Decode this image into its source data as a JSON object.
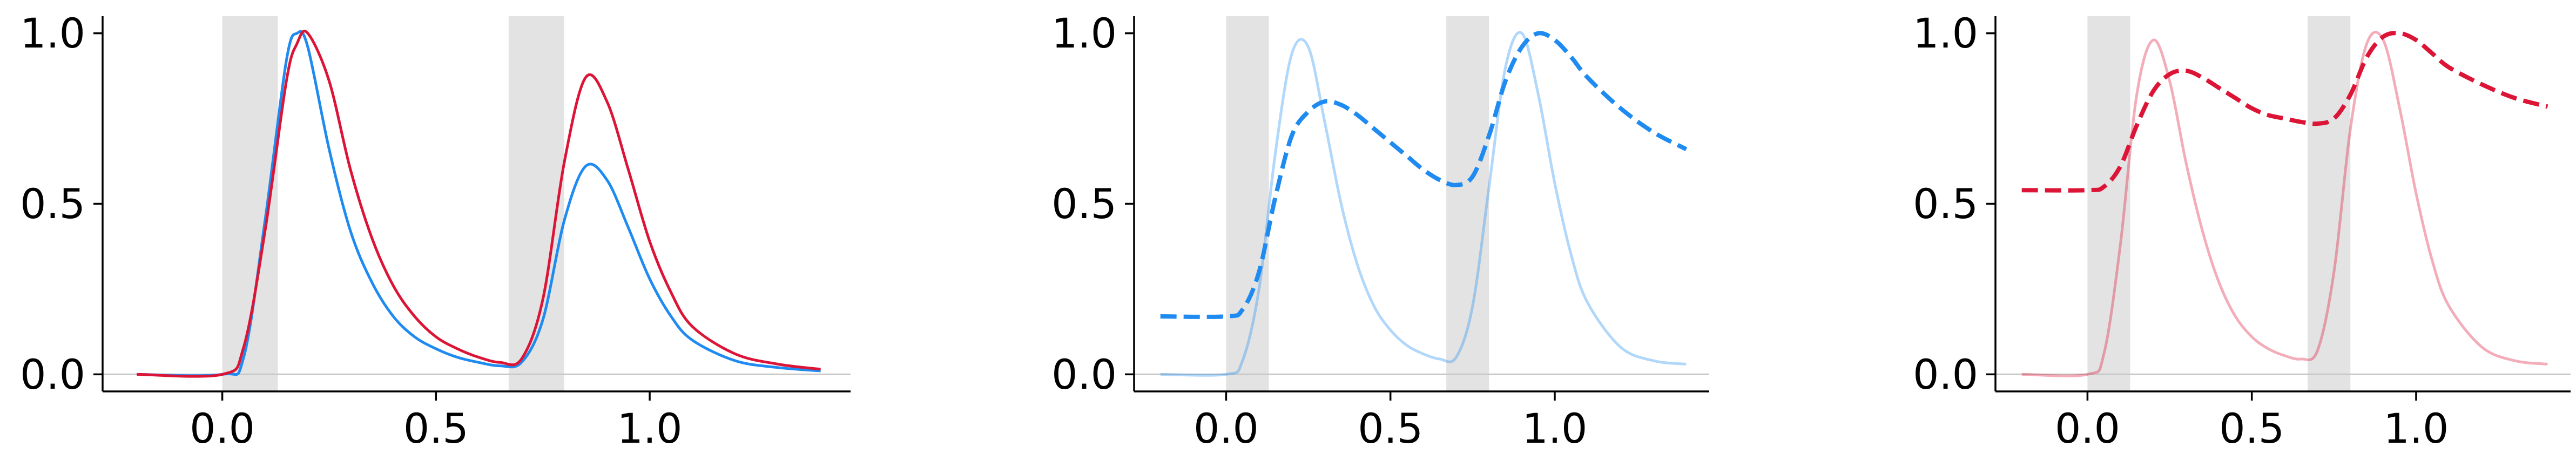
{
  "chart_data": [
    {
      "type": "line",
      "title": "",
      "xlabel": "",
      "ylabel": "",
      "xlim": [
        -0.28,
        1.47
      ],
      "ylim": [
        -0.05,
        1.05
      ],
      "xticks": [
        0.0,
        0.5,
        1.0
      ],
      "xtick_labels": [
        "0.0",
        "0.5",
        "1.0"
      ],
      "yticks": [
        0.0,
        0.5,
        1.0
      ],
      "ytick_labels": [
        "0.0",
        "0.5",
        "1.0"
      ],
      "grid": false,
      "legend": "none",
      "shaded_intervals": [
        [
          0.0,
          0.13
        ],
        [
          0.67,
          0.8
        ]
      ],
      "baseline": 0.0,
      "x": [
        -0.2,
        0.0,
        0.05,
        0.1,
        0.15,
        0.175,
        0.2,
        0.25,
        0.3,
        0.35,
        0.4,
        0.45,
        0.5,
        0.55,
        0.6,
        0.65,
        0.7,
        0.75,
        0.8,
        0.85,
        0.9,
        0.95,
        1.0,
        1.05,
        1.1,
        1.2,
        1.3,
        1.4
      ],
      "series": [
        {
          "color": "#1f8bf0",
          "style": "solid",
          "opacity": 1,
          "values": [
            0.0,
            0.0,
            0.05,
            0.45,
            0.92,
            1.0,
            0.96,
            0.66,
            0.42,
            0.27,
            0.17,
            0.11,
            0.075,
            0.05,
            0.035,
            0.025,
            0.035,
            0.16,
            0.45,
            0.61,
            0.57,
            0.43,
            0.28,
            0.17,
            0.1,
            0.04,
            0.02,
            0.01
          ]
        },
        {
          "color": "#dc1537",
          "style": "solid",
          "opacity": 1,
          "values": [
            0.0,
            0.0,
            0.08,
            0.42,
            0.86,
            0.97,
            1.0,
            0.86,
            0.6,
            0.4,
            0.26,
            0.17,
            0.11,
            0.075,
            0.05,
            0.035,
            0.045,
            0.22,
            0.62,
            0.87,
            0.8,
            0.6,
            0.39,
            0.24,
            0.14,
            0.06,
            0.03,
            0.015
          ]
        }
      ]
    },
    {
      "type": "line",
      "title": "",
      "xlabel": "",
      "ylabel": "",
      "xlim": [
        -0.28,
        1.47
      ],
      "ylim": [
        -0.05,
        1.05
      ],
      "xticks": [
        0.0,
        0.5,
        1.0
      ],
      "xtick_labels": [
        "0.0",
        "0.5",
        "1.0"
      ],
      "yticks": [
        0.0,
        0.5,
        1.0
      ],
      "ytick_labels": [
        "0.0",
        "0.5",
        "1.0"
      ],
      "grid": false,
      "legend": "none",
      "shaded_intervals": [
        [
          0.0,
          0.13
        ],
        [
          0.67,
          0.8
        ]
      ],
      "baseline": 0.0,
      "x": [
        -0.2,
        0.0,
        0.05,
        0.1,
        0.15,
        0.2,
        0.25,
        0.3,
        0.35,
        0.4,
        0.45,
        0.5,
        0.55,
        0.6,
        0.65,
        0.7,
        0.75,
        0.8,
        0.85,
        0.9,
        0.95,
        1.0,
        1.05,
        1.1,
        1.2,
        1.3,
        1.4
      ],
      "series": [
        {
          "color": "#1f8bf0",
          "style": "solid",
          "opacity": 0.35,
          "values": [
            0.0,
            0.0,
            0.04,
            0.25,
            0.65,
            0.94,
            0.96,
            0.74,
            0.5,
            0.32,
            0.2,
            0.13,
            0.085,
            0.06,
            0.045,
            0.05,
            0.2,
            0.55,
            0.9,
            1.0,
            0.82,
            0.56,
            0.35,
            0.21,
            0.08,
            0.04,
            0.03
          ]
        },
        {
          "color": "#1f8bf0",
          "style": "dashed",
          "opacity": 1,
          "values": [
            0.17,
            0.17,
            0.19,
            0.3,
            0.52,
            0.7,
            0.77,
            0.8,
            0.79,
            0.76,
            0.72,
            0.68,
            0.64,
            0.6,
            0.57,
            0.555,
            0.58,
            0.7,
            0.86,
            0.96,
            1.0,
            0.98,
            0.93,
            0.87,
            0.78,
            0.71,
            0.66
          ]
        }
      ]
    },
    {
      "type": "line",
      "title": "",
      "xlabel": "",
      "ylabel": "",
      "xlim": [
        -0.28,
        1.47
      ],
      "ylim": [
        -0.05,
        1.05
      ],
      "xticks": [
        0.0,
        0.5,
        1.0
      ],
      "xtick_labels": [
        "0.0",
        "0.5",
        "1.0"
      ],
      "yticks": [
        0.0,
        0.5,
        1.0
      ],
      "ytick_labels": [
        "0.0",
        "0.5",
        "1.0"
      ],
      "grid": false,
      "legend": "none",
      "shaded_intervals": [
        [
          0.0,
          0.13
        ],
        [
          0.67,
          0.8
        ]
      ],
      "baseline": 0.0,
      "x": [
        -0.2,
        0.0,
        0.05,
        0.1,
        0.15,
        0.2,
        0.25,
        0.3,
        0.35,
        0.4,
        0.45,
        0.5,
        0.55,
        0.6,
        0.65,
        0.7,
        0.75,
        0.8,
        0.85,
        0.9,
        0.95,
        1.0,
        1.05,
        1.1,
        1.2,
        1.3,
        1.4
      ],
      "series": [
        {
          "color": "#dc1537",
          "style": "solid",
          "opacity": 0.35,
          "values": [
            0.0,
            0.0,
            0.06,
            0.38,
            0.82,
            0.98,
            0.86,
            0.62,
            0.42,
            0.27,
            0.17,
            0.11,
            0.075,
            0.055,
            0.045,
            0.07,
            0.3,
            0.72,
            0.97,
            0.98,
            0.78,
            0.53,
            0.33,
            0.2,
            0.08,
            0.04,
            0.03
          ]
        },
        {
          "color": "#dc1537",
          "style": "dashed",
          "opacity": 1,
          "values": [
            0.54,
            0.54,
            0.55,
            0.61,
            0.73,
            0.83,
            0.88,
            0.89,
            0.87,
            0.84,
            0.81,
            0.78,
            0.76,
            0.75,
            0.74,
            0.735,
            0.75,
            0.82,
            0.93,
            0.99,
            1.0,
            0.98,
            0.94,
            0.9,
            0.85,
            0.81,
            0.785
          ]
        }
      ]
    }
  ]
}
